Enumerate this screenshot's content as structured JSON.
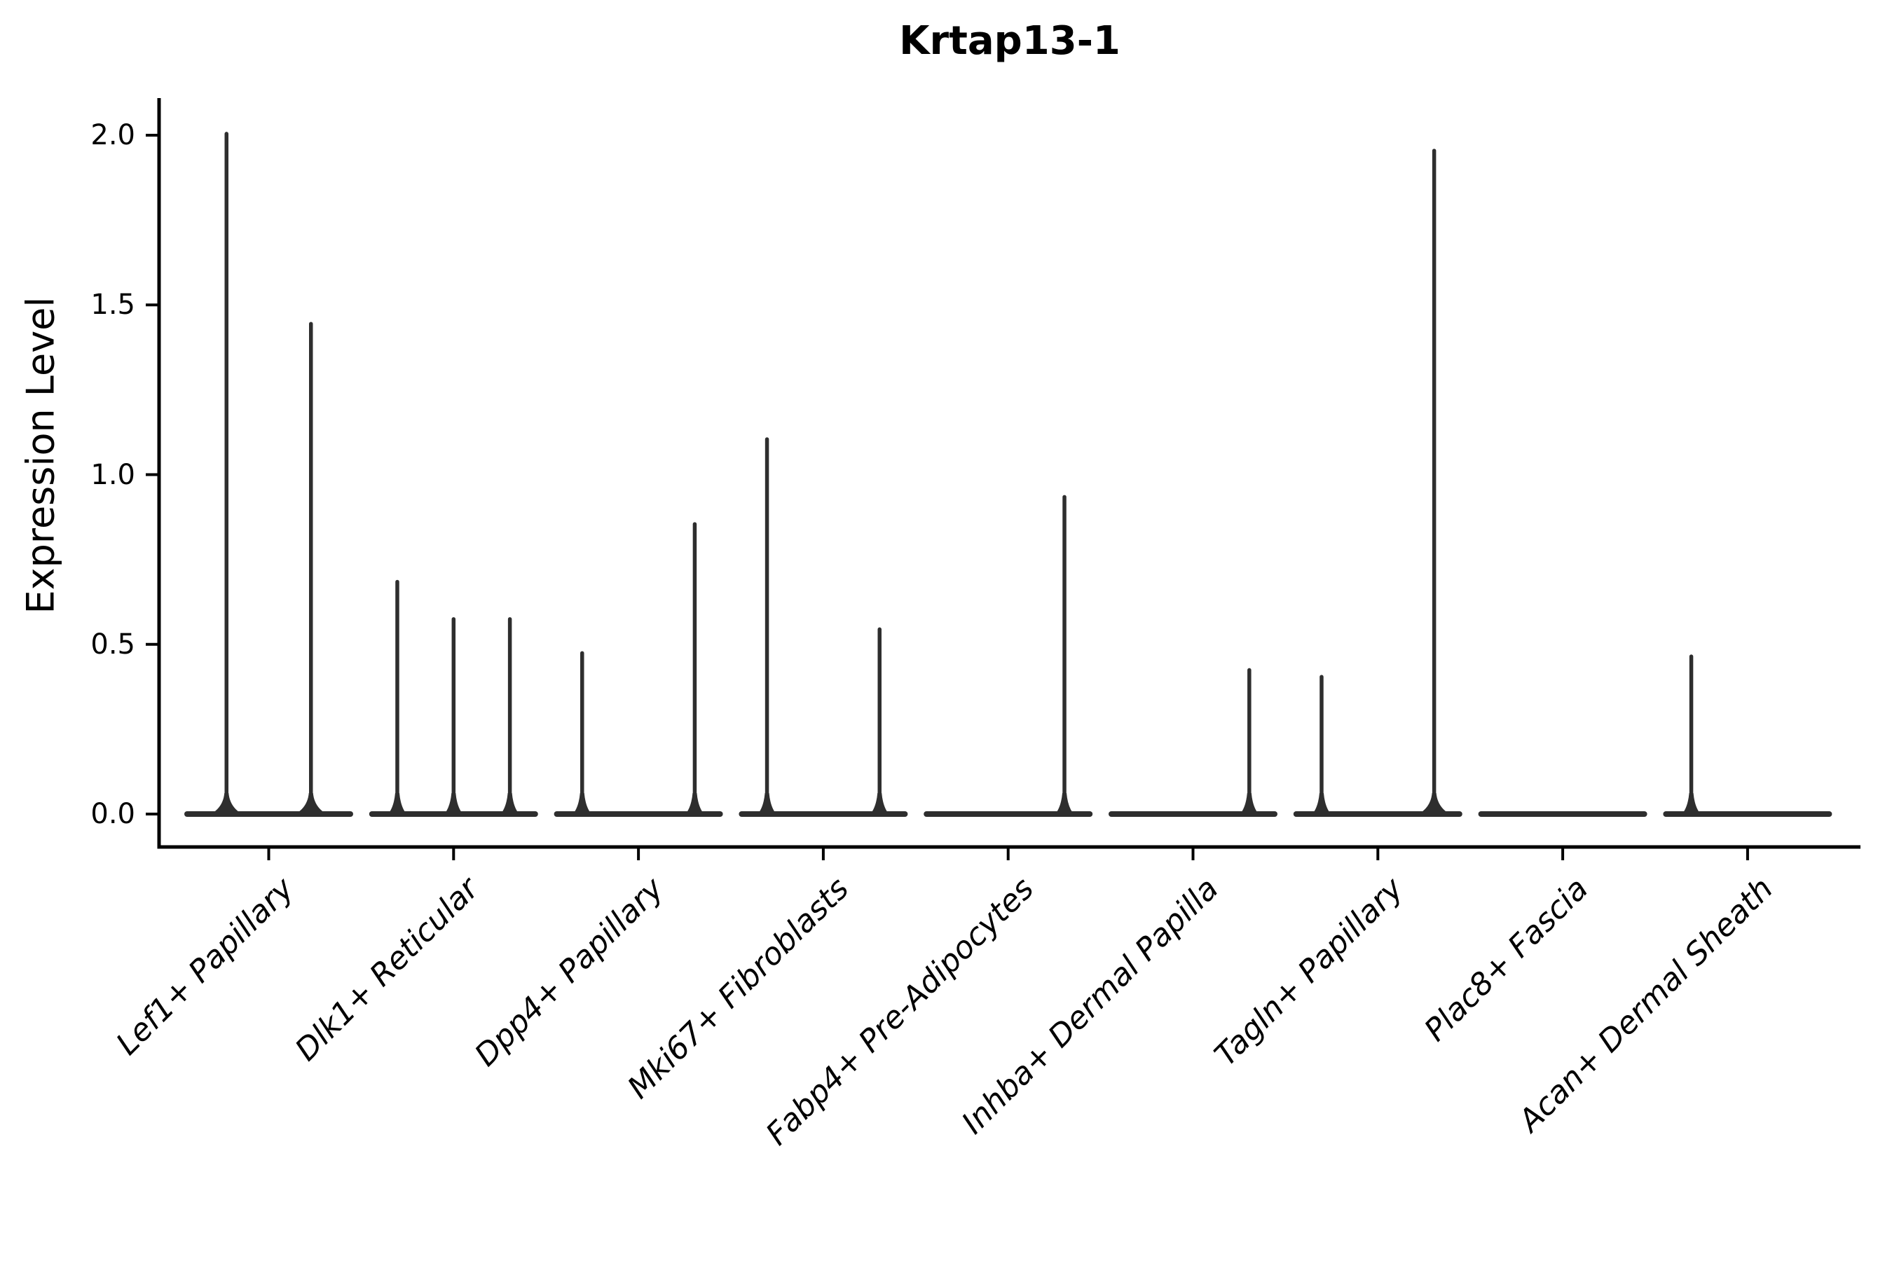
{
  "chart_data": {
    "type": "violin",
    "title": "Krtap13-1",
    "ylabel": "Expression Level",
    "xlabel": "",
    "yticks": [
      "0.0",
      "0.5",
      "1.0",
      "1.5",
      "2.0"
    ],
    "ytick_values": [
      0.0,
      0.5,
      1.0,
      1.5,
      2.0
    ],
    "ylim": [
      -0.097,
      2.11
    ],
    "grid": false,
    "legend": "none",
    "colors": {
      "violin": "#2e2e2e",
      "axis": "#000000",
      "background": "#ffffff"
    },
    "categories": [
      {
        "label": "Lef1+ Papillary",
        "violin_maxima": [
          2.01,
          1.45
        ]
      },
      {
        "label": "Dlk1+ Reticular",
        "violin_maxima": [
          0.69,
          0.58,
          0.58
        ]
      },
      {
        "label": "Dpp4+ Papillary",
        "violin_maxima": [
          0.48,
          0.0,
          0.86
        ]
      },
      {
        "label": "Mki67+ Fibroblasts",
        "violin_maxima": [
          1.11,
          0.0,
          0.55
        ]
      },
      {
        "label": "Fabp4+ Pre-Adipocytes",
        "violin_maxima": [
          0.0,
          0.0,
          0.94
        ]
      },
      {
        "label": "Inhba+ Dermal Papilla",
        "violin_maxima": [
          0.0,
          0.0,
          0.43
        ]
      },
      {
        "label": "Tagln+ Papillary",
        "violin_maxima": [
          0.41,
          0.0,
          1.96
        ]
      },
      {
        "label": "Plac8+ Fascia",
        "violin_maxima": [
          0.0,
          0.0,
          0.0
        ]
      },
      {
        "label": "Acan+ Dermal Sheath",
        "violin_maxima": [
          0.47,
          0.0,
          0.0
        ]
      }
    ]
  }
}
